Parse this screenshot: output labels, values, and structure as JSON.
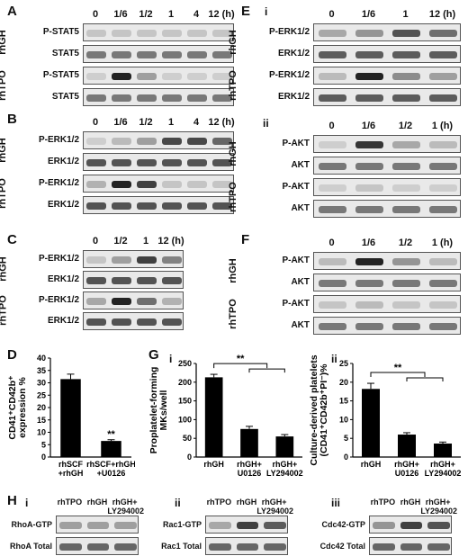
{
  "panels": {
    "A": {
      "letter": "A",
      "times": [
        "0",
        "1/6",
        "1/2",
        "1",
        "4",
        "12 (h)"
      ],
      "groups": [
        "rhGH",
        "rhTPO"
      ],
      "rows": [
        {
          "label": "P-STAT5",
          "bands": [
            0.15,
            0.15,
            0.15,
            0.15,
            0.15,
            0.15
          ]
        },
        {
          "label": "STAT5",
          "bands": [
            0.55,
            0.55,
            0.55,
            0.55,
            0.55,
            0.55
          ]
        },
        {
          "label": "P-STAT5",
          "bands": [
            0.1,
            1.0,
            0.35,
            0.1,
            0.1,
            0.1
          ]
        },
        {
          "label": "STAT5",
          "bands": [
            0.55,
            0.55,
            0.55,
            0.55,
            0.55,
            0.55
          ]
        }
      ]
    },
    "B": {
      "letter": "B",
      "times": [
        "0",
        "1/6",
        "1/2",
        "1",
        "4",
        "12 (h)"
      ],
      "groups": [
        "rhGH",
        "rhTPO"
      ],
      "rows": [
        {
          "label": "P-ERK1/2",
          "bands": [
            0.1,
            0.2,
            0.35,
            0.8,
            0.8,
            0.65
          ]
        },
        {
          "label": "ERK1/2",
          "bands": [
            0.75,
            0.75,
            0.75,
            0.75,
            0.75,
            0.75
          ]
        },
        {
          "label": "P-ERK1/2",
          "bands": [
            0.25,
            1.0,
            0.85,
            0.15,
            0.15,
            0.15
          ]
        },
        {
          "label": "ERK1/2",
          "bands": [
            0.75,
            0.75,
            0.75,
            0.75,
            0.75,
            0.75
          ]
        }
      ]
    },
    "C": {
      "letter": "C",
      "times": [
        "0",
        "1/2",
        "1",
        "12 (h)"
      ],
      "groups": [
        "rhGH",
        "rhTPO"
      ],
      "rows": [
        {
          "label": "P-ERK1/2",
          "bands": [
            0.15,
            0.35,
            0.85,
            0.5
          ]
        },
        {
          "label": "ERK1/2",
          "bands": [
            0.75,
            0.75,
            0.75,
            0.75
          ]
        },
        {
          "label": "P-ERK1/2",
          "bands": [
            0.3,
            1.0,
            0.6,
            0.25
          ]
        },
        {
          "label": "ERK1/2",
          "bands": [
            0.75,
            0.75,
            0.75,
            0.75
          ]
        }
      ]
    },
    "E": {
      "letter": "E",
      "sub_i": "i",
      "sub_ii": "ii",
      "times_i": [
        "0",
        "1/6",
        "1",
        "12 (h)"
      ],
      "groups": [
        "rhGH",
        "rhTPO"
      ],
      "rows_i": [
        {
          "label": "P-ERK1/2",
          "bands": [
            0.3,
            0.4,
            0.75,
            0.6
          ]
        },
        {
          "label": "ERK1/2",
          "bands": [
            0.7,
            0.7,
            0.7,
            0.7
          ]
        },
        {
          "label": "P-ERK1/2",
          "bands": [
            0.2,
            1.0,
            0.45,
            0.35
          ]
        },
        {
          "label": "ERK1/2",
          "bands": [
            0.7,
            0.7,
            0.7,
            0.7
          ]
        }
      ],
      "times_ii": [
        "0",
        "1/6",
        "1/2",
        "1 (h)"
      ],
      "rows_ii": [
        {
          "label": "P-AKT",
          "bands": [
            0.1,
            0.9,
            0.3,
            0.2
          ]
        },
        {
          "label": "AKT",
          "bands": [
            0.55,
            0.55,
            0.55,
            0.55
          ]
        },
        {
          "label": "P-AKT",
          "bands": [
            0.1,
            0.15,
            0.1,
            0.1
          ]
        },
        {
          "label": "AKT",
          "bands": [
            0.55,
            0.55,
            0.55,
            0.55
          ]
        }
      ]
    },
    "F": {
      "letter": "F",
      "times": [
        "0",
        "1/6",
        "1/2",
        "1 (h)"
      ],
      "groups": [
        "rhGH",
        "rhTPO"
      ],
      "rows": [
        {
          "label": "P-AKT",
          "bands": [
            0.2,
            1.0,
            0.4,
            0.2
          ]
        },
        {
          "label": "AKT",
          "bands": [
            0.55,
            0.55,
            0.55,
            0.55
          ]
        },
        {
          "label": "P-AKT",
          "bands": [
            0.15,
            0.2,
            0.15,
            0.15
          ]
        },
        {
          "label": "AKT",
          "bands": [
            0.55,
            0.55,
            0.55,
            0.55
          ]
        }
      ]
    },
    "D": {
      "letter": "D"
    },
    "G": {
      "letter": "G",
      "sub_i": "i",
      "sub_ii": "ii"
    },
    "H": {
      "letter": "H",
      "sub_i": "i",
      "sub_ii": "ii",
      "sub_iii": "iii",
      "lanes": [
        "rhTPO",
        "rhGH",
        "rhGH+ LY294002"
      ],
      "blots": [
        {
          "top": "RhoA-GTP",
          "bottom": "RhoA Total",
          "bands": [
            0.35,
            0.35,
            0.35
          ]
        },
        {
          "top": "Rac1-GTP",
          "bottom": "Rac1 Total",
          "bands": [
            0.3,
            0.85,
            0.7
          ]
        },
        {
          "top": "Cdc42-GTP",
          "bottom": "Cdc42 Total",
          "bands": [
            0.4,
            0.85,
            0.75
          ]
        }
      ]
    }
  },
  "chart_data": [
    {
      "type": "bar",
      "panel": "D",
      "categories": [
        "rhSCF +rhGH",
        "rhSCF+rhGH +U0126"
      ],
      "values": [
        31.5,
        6.5
      ],
      "errors": [
        2.0,
        0.5
      ],
      "significance": [
        "",
        "**"
      ],
      "ylabel": "CD41⁺CD42b⁺ expression %",
      "ylim": [
        0,
        40
      ],
      "yticks": [
        "0",
        "5",
        "10",
        "15",
        "20",
        "25",
        "30",
        "35",
        "40"
      ]
    },
    {
      "type": "bar",
      "panel": "G-i",
      "categories": [
        "rhGH",
        "rhGH+ U0126",
        "rhGH+ LY294002"
      ],
      "values": [
        213,
        75,
        55
      ],
      "errors": [
        8,
        7,
        5
      ],
      "significance_bracket": "**",
      "ylabel": "Proplatelet-forming MKs/well",
      "ylim": [
        0,
        250
      ],
      "yticks": [
        "0",
        "50",
        "100",
        "150",
        "200",
        "250"
      ]
    },
    {
      "type": "bar",
      "panel": "G-ii",
      "categories": [
        "rhGH",
        "rhGH+ U0126",
        "rhGH+ LY294002"
      ],
      "values": [
        18.2,
        6.0,
        3.6
      ],
      "errors": [
        1.5,
        0.5,
        0.4
      ],
      "significance_bracket": "**",
      "ylabel": "Culture-derived platelets (CD41⁺CD42b⁺PI⁻)%",
      "ylim": [
        0,
        25
      ],
      "yticks": [
        "0",
        "5",
        "10",
        "15",
        "20",
        "25"
      ]
    }
  ]
}
